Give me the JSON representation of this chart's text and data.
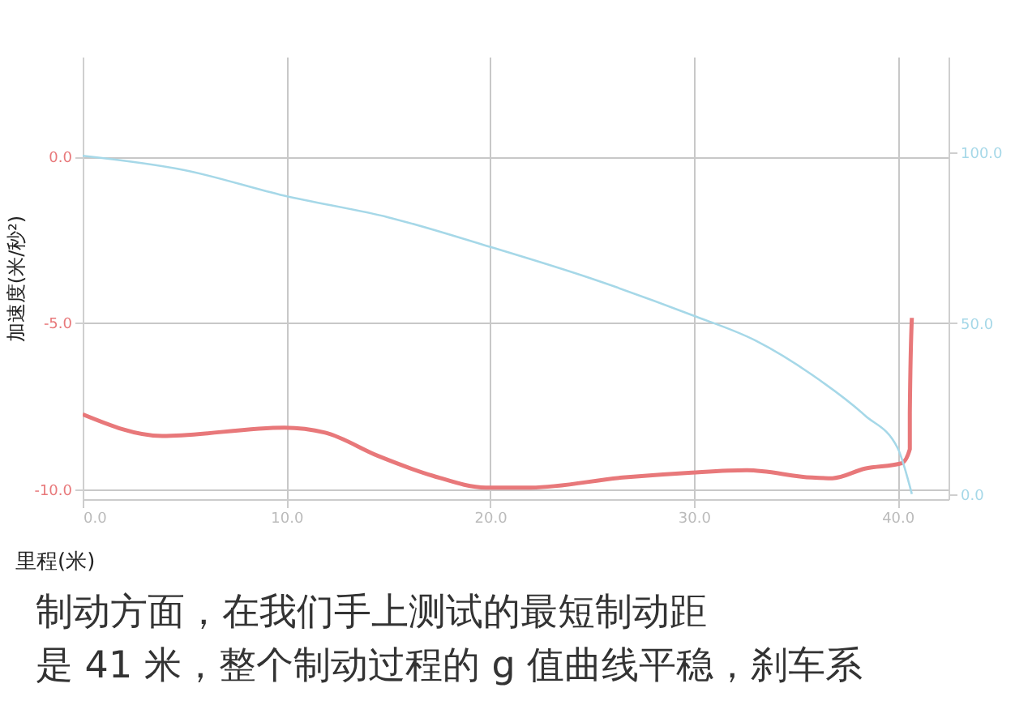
{
  "chart_data": {
    "type": "line",
    "xlabel": "里程(米)",
    "ylabel": "加速度(米/秒²)",
    "xlim": [
      0,
      42.5
    ],
    "ylim": [
      -10.3,
      3
    ],
    "y2lim": [
      -1.5,
      128
    ],
    "xticks": [
      {
        "value": 0,
        "label": "0.0"
      },
      {
        "value": 10,
        "label": "10.0"
      },
      {
        "value": 20,
        "label": "20.0"
      },
      {
        "value": 30,
        "label": "30.0"
      },
      {
        "value": 40,
        "label": "40.0"
      }
    ],
    "yticks": [
      {
        "value": -10,
        "label": "-10.0"
      },
      {
        "value": -5,
        "label": "-5.0"
      },
      {
        "value": 0,
        "label": "0.0"
      }
    ],
    "y2ticks": [
      {
        "value": 0,
        "label": "0.0"
      },
      {
        "value": 50,
        "label": "50.0"
      },
      {
        "value": 100,
        "label": "100.0"
      }
    ],
    "grid": true,
    "series": [
      {
        "color": "#e8787a",
        "x": [
          0,
          3.9,
          9.9,
          11.9,
          14.5,
          17.2,
          19.8,
          22,
          26.5,
          29.9,
          32.6,
          35.8,
          36.8,
          38.4,
          40.2,
          40.6,
          40.6,
          40.7
        ],
        "values": [
          -7.75,
          -8.4,
          -8.15,
          -8.3,
          -9.0,
          -9.6,
          -9.95,
          -9.95,
          -9.65,
          -9.5,
          -9.43,
          -9.65,
          -9.67,
          -9.38,
          -9.22,
          -8.8,
          -7.7,
          -4.85
        ]
      },
      {
        "color": "#a6d8e8",
        "axis": "y2",
        "x": [
          0,
          5,
          9.9,
          15,
          19.8,
          25,
          29.9,
          33,
          35.8,
          38.4,
          40,
          40.7
        ],
        "values": [
          99,
          94.8,
          87.3,
          81,
          72.7,
          63,
          52.4,
          45,
          34.9,
          23,
          13.5,
          0
        ]
      }
    ],
    "annotations": [
      "制动方面，在我们手上测试的最短制动距",
      "是 41 米，整个制动过程的 g 值曲线平稳，刹车系"
    ]
  }
}
